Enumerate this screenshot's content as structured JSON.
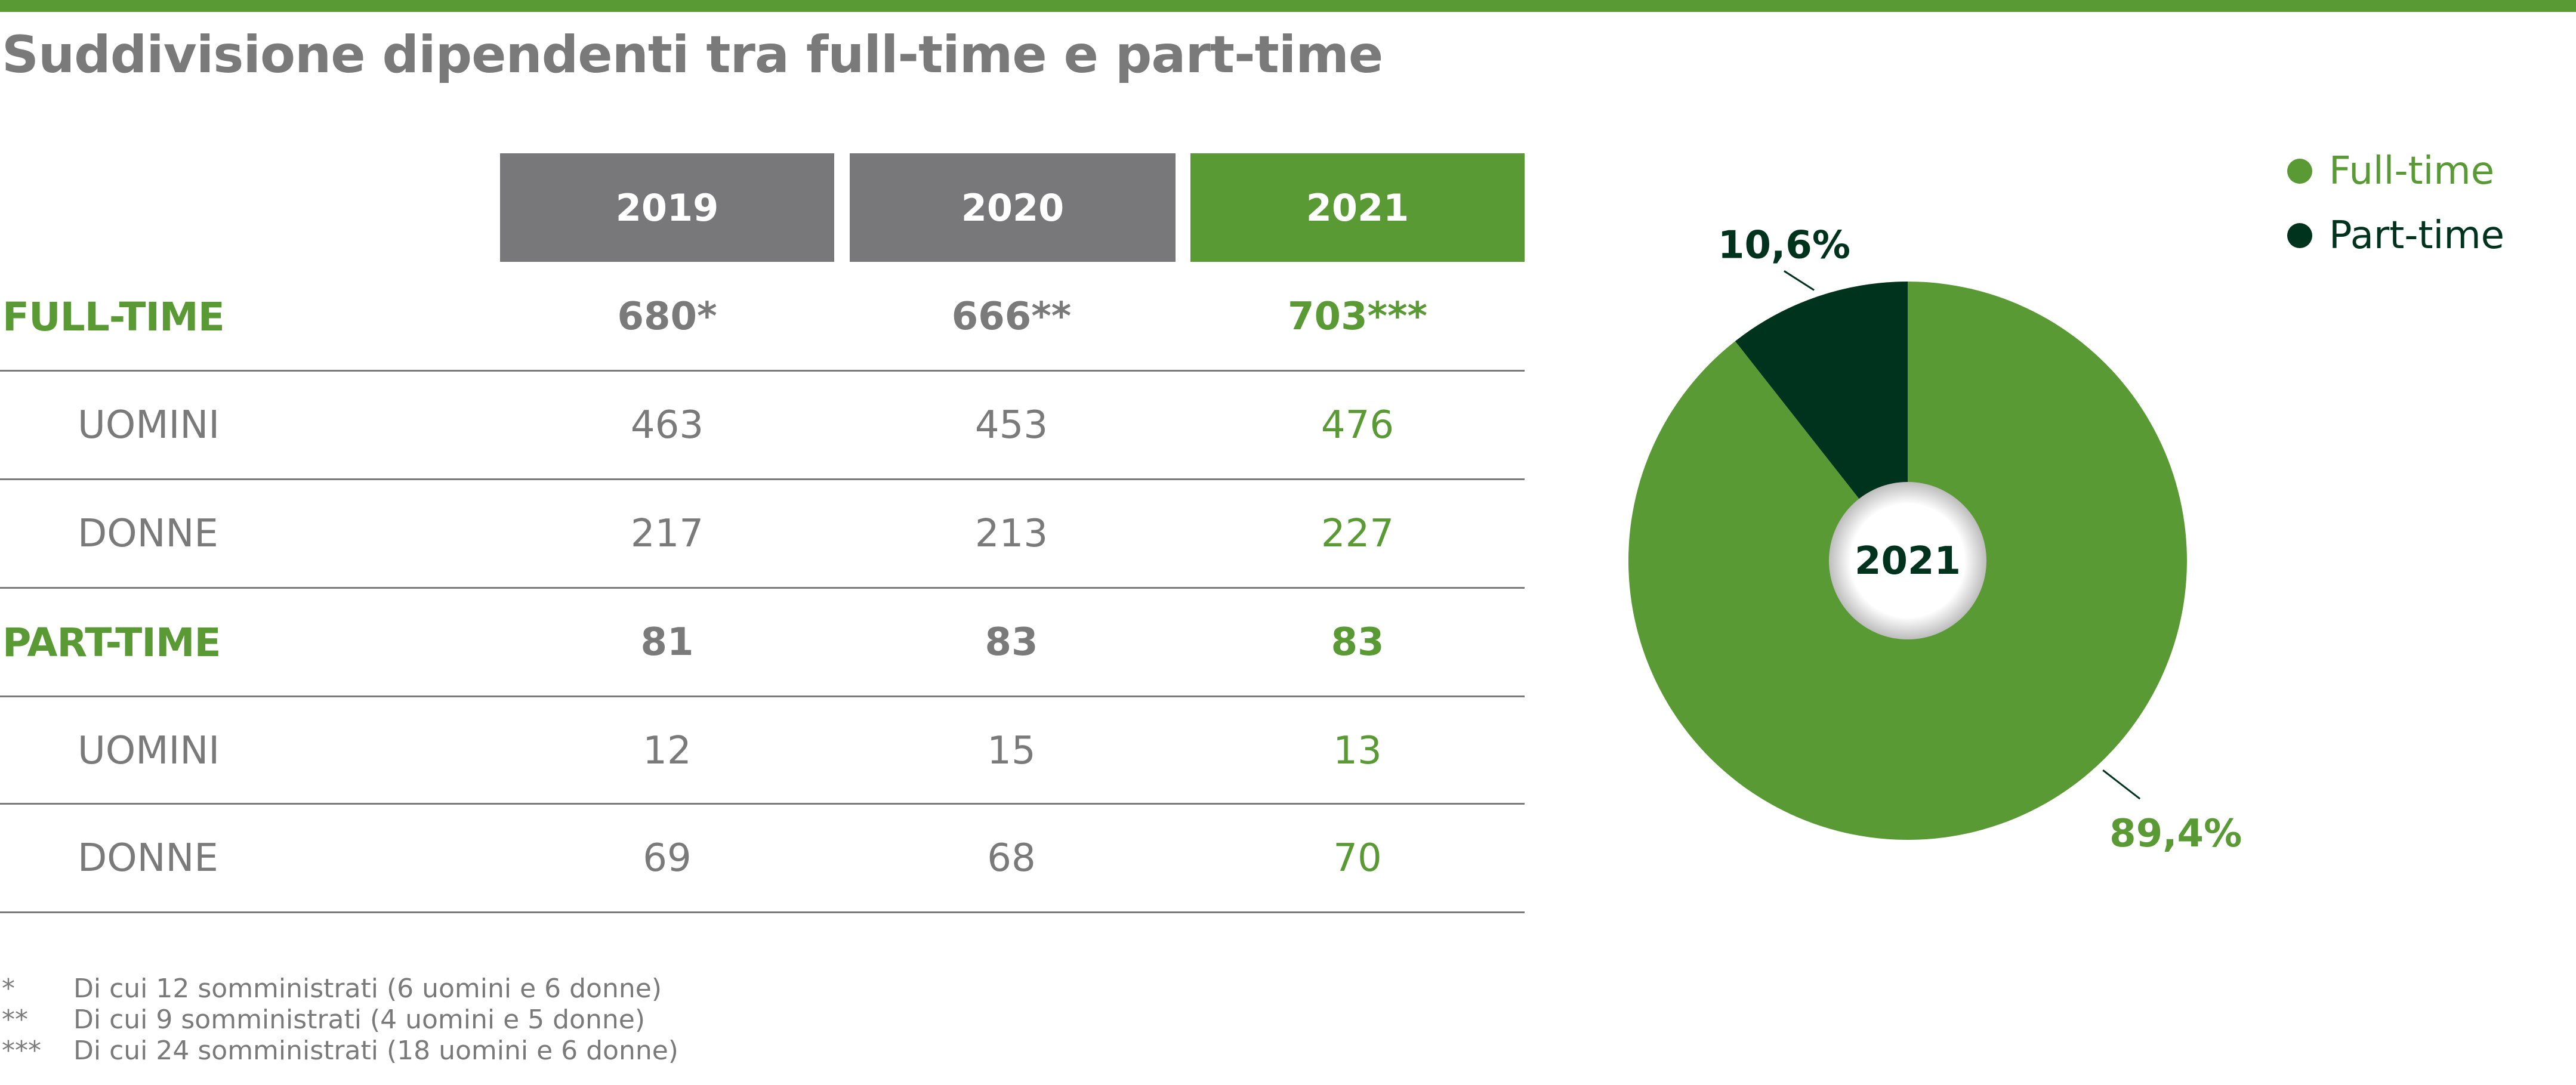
{
  "title": "Suddivisione dipendenti tra full-time e part-time",
  "colors": {
    "green": "#5a9a35",
    "dark_green": "#00331e",
    "gray": "#78787a"
  },
  "table": {
    "years": [
      "2019",
      "2020",
      "2021"
    ],
    "rows": [
      {
        "label": "FULL-TIME",
        "kind": "main",
        "values": [
          "680*",
          "666**",
          "703***"
        ]
      },
      {
        "label": "UOMINI",
        "kind": "sub",
        "values": [
          "463",
          "453",
          "476"
        ]
      },
      {
        "label": "DONNE",
        "kind": "sub",
        "values": [
          "217",
          "213",
          "227"
        ]
      },
      {
        "label": "PART-TIME",
        "kind": "main",
        "values": [
          "81",
          "83",
          "83"
        ]
      },
      {
        "label": "UOMINI",
        "kind": "sub",
        "values": [
          "12",
          "15",
          "13"
        ]
      },
      {
        "label": "DONNE",
        "kind": "sub",
        "values": [
          "69",
          "68",
          "70"
        ]
      }
    ]
  },
  "chart_data": {
    "type": "pie",
    "center_label": "2021",
    "legend_position": "top-right",
    "slices": [
      {
        "name": "Full-time",
        "value": 89.4,
        "label": "89,4%",
        "color": "#5a9a35"
      },
      {
        "name": "Part-time",
        "value": 10.6,
        "label": "10,6%",
        "color": "#00331e"
      }
    ]
  },
  "footnotes": [
    {
      "marker": "*",
      "text": "Di cui 12 somministrati (6 uomini e 6 donne)"
    },
    {
      "marker": "**",
      "text": "Di cui 9 somministrati (4 uomini e 5 donne)"
    },
    {
      "marker": "***",
      "text": "Di cui 24 somministrati (18 uomini e 6 donne)"
    }
  ]
}
